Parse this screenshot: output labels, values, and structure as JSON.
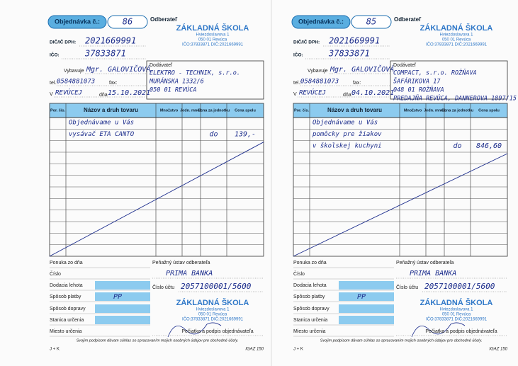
{
  "forms": [
    {
      "header": {
        "order_label": "Objednávka č.:",
        "order_number": "86",
        "customer_label": "Odberateľ"
      },
      "stamp_top": {
        "name": "ZÁKLADNÁ ŠKOLA",
        "street": "Hviezdoslavova 1",
        "city": "050 01 Revúca",
        "ids": "IČO:37833871 DIČ:2021669991"
      },
      "dic": {
        "label": "DIČ/IČ DPH:",
        "value": "2021669991"
      },
      "ico": {
        "label": "IČO:",
        "value": "37833871"
      },
      "handled_by": {
        "label": "Vybavuje",
        "value": "Mgr. GALOVIČOVÁ"
      },
      "phone": {
        "label": "tel.:",
        "value": "0584881073",
        "fax_label": "fax:"
      },
      "place": {
        "prefix": "V",
        "value": "REVÚCEJ",
        "date_label": "dňa",
        "date": "15.10.2021"
      },
      "supplier": {
        "label": "Dodávateľ",
        "lines": [
          "ELEKTRO - TECHNIK, s.r.o.",
          "MURÁNSKA 1332/6",
          "050 01 REVÚCA"
        ]
      },
      "table": {
        "columns": [
          "Por. čís.",
          "Názov a druh tovaru",
          "Množstvo",
          "Jedn. množ.",
          "Cena za jednotku",
          "Cena spolu"
        ],
        "rows": [
          {
            "item": "Objednávame u Vás"
          },
          {
            "item": "vysávač ETA CANTO",
            "unit_price": "do",
            "total": "139,-"
          }
        ]
      },
      "bottom": {
        "labels": [
          "Ponuka zo dňa",
          "Číslo",
          "Dodacia lehota",
          "Spôsob platby",
          "Spôsob dopravy",
          "Stanica určenia",
          "Miesto určenia"
        ],
        "payment_value": "PP",
        "bank_label": "Peňažný ústav odberateľa",
        "bank": "PRIMA BANKA",
        "account_label": "Číslo účtu",
        "account": "2057100001/5600",
        "stamp": {
          "name": "ZÁKLADNÁ ŠKOLA",
          "street": "Hviezdoslavova 1",
          "city": "050 01 Revúca",
          "ids": "IČO:37833871 DIČ:2021669991"
        },
        "signature_label": "Pečiatka a podpis objednávateľa"
      },
      "footer": {
        "consent": "Svojim podpisom dávam súhlas so spracovaním mojich osobných údajov pre obchodné účely.",
        "left_code": "J + K",
        "form_code": "IGAZ 150"
      }
    },
    {
      "header": {
        "order_label": "Objednávka č.:",
        "order_number": "85",
        "customer_label": "Odberateľ"
      },
      "stamp_top": {
        "name": "ZÁKLADNÁ ŠKOLA",
        "street": "Hviezdoslavova 1",
        "city": "050 01 Revúca",
        "ids": "IČO:37833871 DIČ:2021669991"
      },
      "dic": {
        "label": "DIČ/IČ DPH:",
        "value": "2021669991"
      },
      "ico": {
        "label": "IČO:",
        "value": "37833871"
      },
      "handled_by": {
        "label": "Vybavuje",
        "value": "Mgr. GALOVIČOVÁ"
      },
      "phone": {
        "label": "tel.:",
        "value": "0584881073",
        "fax_label": "fax:"
      },
      "place": {
        "prefix": "V",
        "value": "REVÚCEJ",
        "date_label": "dňa",
        "date": "04.10.2021"
      },
      "supplier": {
        "label": "Dodávateľ",
        "lines": [
          "COMPACT, s.r.o. ROŽŇAVA",
          "ŠAFÁRIKOVA 17",
          "048 01 ROŽŇAVA",
          "PREDAJŇA REVÚCA, DANNEROVA 1897/15"
        ]
      },
      "table": {
        "columns": [
          "Por. čís.",
          "Názov a druh tovaru",
          "Množstvo",
          "Jedn. množ.",
          "Cena za jednotku",
          "Cena spolu"
        ],
        "rows": [
          {
            "item": "Objednávame u Vás"
          },
          {
            "item": "pomôcky pre žiakov"
          },
          {
            "item": "v školskej kuchyni",
            "unit_price": "do",
            "total": "846,60"
          }
        ]
      },
      "bottom": {
        "labels": [
          "Ponuka zo dňa",
          "Číslo",
          "Dodacia lehota",
          "Spôsob platby",
          "Spôsob dopravy",
          "Stanica určenia",
          "Miesto určenia"
        ],
        "payment_value": "PP",
        "bank_label": "Peňažný ústav odberateľa",
        "bank": "PRIMA BANKA",
        "account_label": "Číslo účtu",
        "account": "2057100001/5600",
        "stamp": {
          "name": "ZÁKLADNÁ ŠKOLA",
          "street": "Hviezdoslavova 1",
          "city": "050 01 Revúca",
          "ids": "IČO:37833871 DIČ:2021669991"
        },
        "signature_label": "Pečiatka a podpis objednávateľa"
      },
      "footer": {
        "consent": "Svojim podpisom dávam súhlas so spracovaním mojich osobných údajov pre obchodné účely.",
        "left_code": "J + K",
        "form_code": "IGAZ 150"
      }
    }
  ]
}
